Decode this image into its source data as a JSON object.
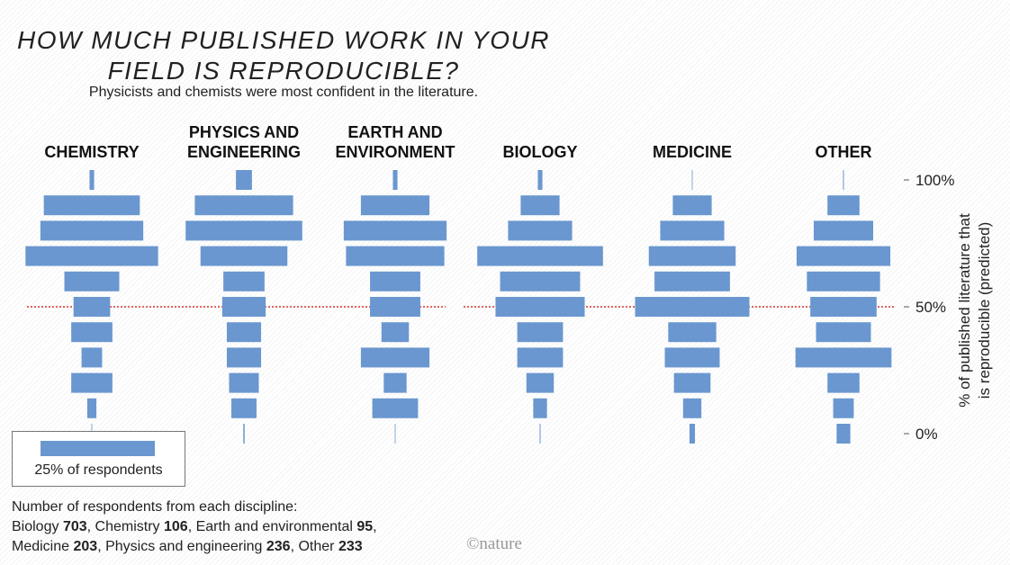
{
  "header": {
    "title": "HOW MUCH PUBLISHED WORK IN YOUR FIELD IS REPRODUCIBLE?",
    "subtitle": "Physicists and chemists were most confident in the literature."
  },
  "legend": {
    "label": "25% of respondents",
    "value": 25
  },
  "footnote": {
    "intro": "Number of respondents from each discipline:",
    "counts": [
      {
        "name": "Biology",
        "n": "703"
      },
      {
        "name": "Chemistry",
        "n": "106"
      },
      {
        "name": "Earth and environmental",
        "n": "95"
      },
      {
        "name": "Medicine",
        "n": "203"
      },
      {
        "name": "Physics and engineering",
        "n": "236"
      },
      {
        "name": "Other",
        "n": "233"
      }
    ]
  },
  "credit": "©nature",
  "colors": {
    "bar": "#6a97cf",
    "reference_line": "#d9322a",
    "text": "#111111",
    "axis": "#555555"
  },
  "chart_data": {
    "type": "bar",
    "orientation": "horizontal-centered",
    "title": "HOW MUCH PUBLISHED WORK IN YOUR FIELD IS REPRODUCIBLE?",
    "ylabel": "% of published literature that is reproducible (predicted)",
    "y_ticks": [
      "100%",
      "50%",
      "0%"
    ],
    "y_tick_values": [
      100,
      50,
      0
    ],
    "ylim": [
      0,
      100
    ],
    "x": [
      100,
      90,
      80,
      70,
      60,
      50,
      40,
      30,
      20,
      10,
      0
    ],
    "value_unit": "% of respondents",
    "reference_line": 50,
    "series": [
      {
        "name": "CHEMISTRY",
        "values": [
          1,
          21,
          22.5,
          29,
          12,
          8,
          9,
          4.5,
          9,
          2,
          0
        ]
      },
      {
        "name": "PHYSICS AND ENGINEERING",
        "values": [
          3.5,
          21.5,
          25.5,
          19,
          9,
          9.5,
          7.5,
          7.5,
          6.5,
          5.5,
          0.3
        ]
      },
      {
        "name": "EARTH AND ENVIRONMENT",
        "values": [
          1,
          15,
          22.5,
          21.5,
          11,
          11,
          6,
          15,
          5,
          10,
          0
        ]
      },
      {
        "name": "BIOLOGY",
        "values": [
          1,
          8.5,
          14,
          27.5,
          17.5,
          19.5,
          10,
          10,
          6,
          3,
          0.2
        ]
      },
      {
        "name": "MEDICINE",
        "values": [
          0,
          8.5,
          14,
          19,
          16.5,
          25,
          10.5,
          12,
          8,
          4,
          1.2
        ]
      },
      {
        "name": "OTHER",
        "values": [
          0.2,
          7,
          13,
          20.5,
          16,
          14.5,
          12,
          21,
          7,
          4.5,
          3
        ]
      }
    ]
  }
}
